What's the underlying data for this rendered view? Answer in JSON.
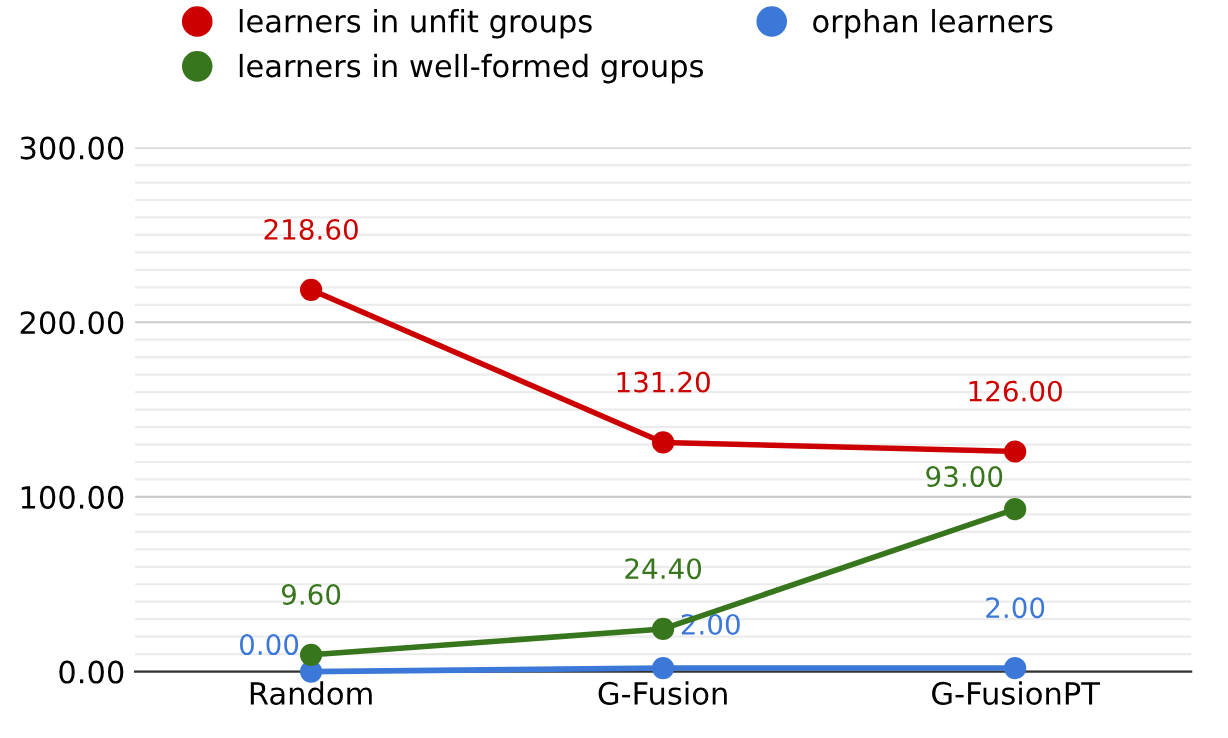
{
  "chart_data": {
    "type": "line",
    "categories": [
      "Random",
      "G-Fusion",
      "G-FusionPT"
    ],
    "series": [
      {
        "name": "learners in unfit groups",
        "color": "#cc0000",
        "values": [
          218.6,
          131.2,
          126.0
        ],
        "value_labels": [
          "218.60",
          "131.20",
          "126.00"
        ]
      },
      {
        "name": "learners in well-formed groups",
        "color": "#38761d",
        "values": [
          9.6,
          24.4,
          93.0
        ],
        "value_labels": [
          "9.60",
          "24.40",
          "93.00"
        ]
      },
      {
        "name": "orphan learners",
        "color": "#3c78d8",
        "values": [
          0.0,
          2.0,
          2.0
        ],
        "value_labels": [
          "0.00",
          "2.00",
          "2.00"
        ]
      }
    ],
    "ylim": [
      0,
      300
    ],
    "yticks": [
      {
        "value": 0,
        "label": "0.00"
      },
      {
        "value": 10,
        "label": null
      },
      {
        "value": 20,
        "label": null
      },
      {
        "value": 30,
        "label": null
      },
      {
        "value": 40,
        "label": null
      },
      {
        "value": 50,
        "label": null
      },
      {
        "value": 60,
        "label": null
      },
      {
        "value": 70,
        "label": null
      },
      {
        "value": 80,
        "label": null
      },
      {
        "value": 90,
        "label": null
      },
      {
        "value": 100,
        "label": "100.00"
      },
      {
        "value": 110,
        "label": null
      },
      {
        "value": 120,
        "label": null
      },
      {
        "value": 130,
        "label": null
      },
      {
        "value": 140,
        "label": null
      },
      {
        "value": 150,
        "label": null
      },
      {
        "value": 160,
        "label": null
      },
      {
        "value": 170,
        "label": null
      },
      {
        "value": 180,
        "label": null
      },
      {
        "value": 190,
        "label": null
      },
      {
        "value": 200,
        "label": "200.00"
      },
      {
        "value": 210,
        "label": null
      },
      {
        "value": 220,
        "label": null
      },
      {
        "value": 230,
        "label": null
      },
      {
        "value": 240,
        "label": null
      },
      {
        "value": 250,
        "label": null
      },
      {
        "value": 260,
        "label": null
      },
      {
        "value": 270,
        "label": null
      },
      {
        "value": 280,
        "label": null
      },
      {
        "value": 290,
        "label": null
      },
      {
        "value": 300,
        "label": "300.00"
      }
    ],
    "grid": "y",
    "legend": "top",
    "marker": "circle",
    "line_style": "solid"
  }
}
